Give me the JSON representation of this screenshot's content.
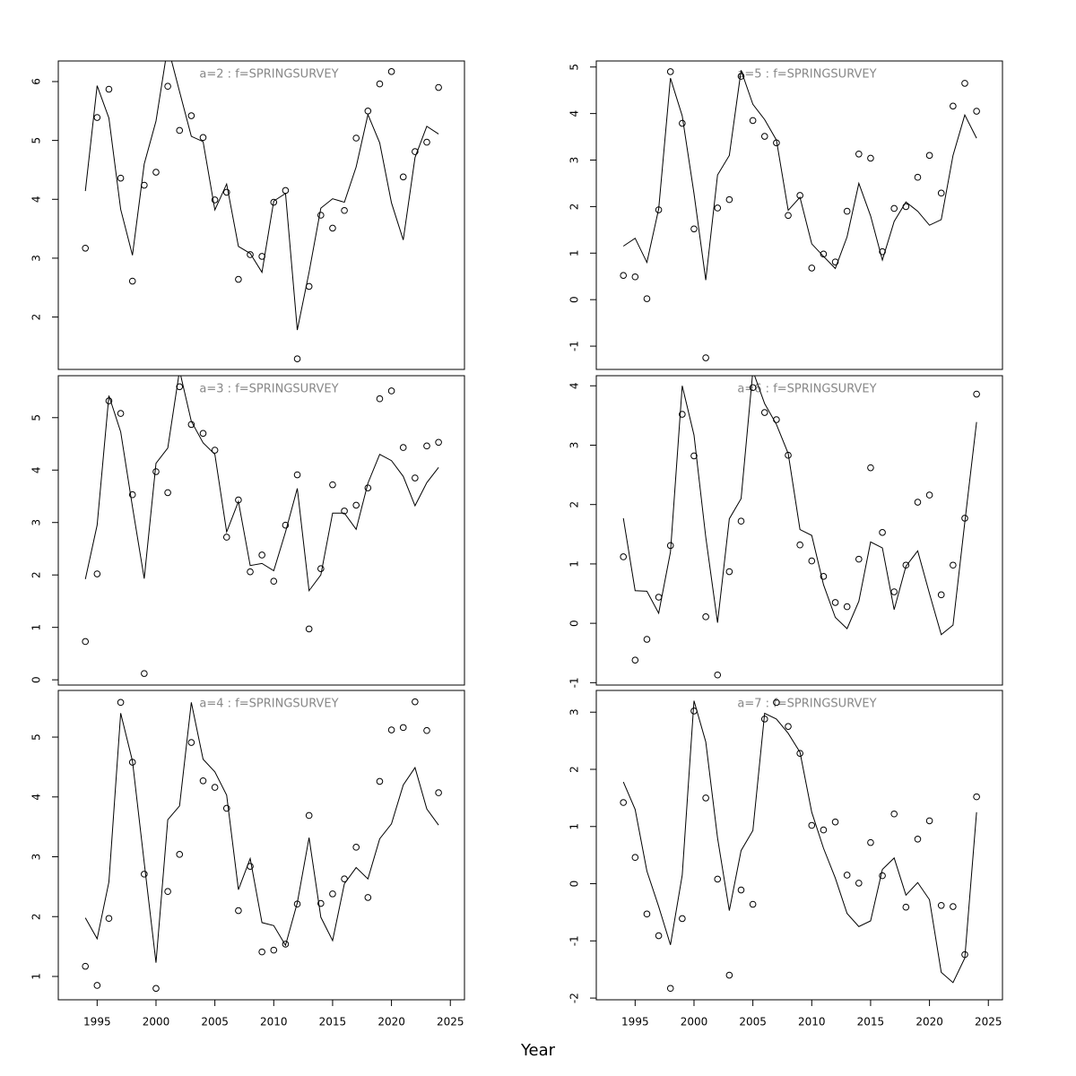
{
  "xlabel": "Year",
  "chart_data": [
    {
      "type": "line",
      "title": "a=2 : f=SPRINGSURVEY",
      "x": [
        1994,
        1995,
        1996,
        1997,
        1998,
        1999,
        2000,
        2001,
        2002,
        2003,
        2004,
        2005,
        2006,
        2007,
        2008,
        2009,
        2010,
        2011,
        2012,
        2013,
        2014,
        2015,
        2016,
        2017,
        2018,
        2019,
        2020,
        2021,
        2022,
        2023,
        2024
      ],
      "xlim": [
        1991.7,
        2026.2
      ],
      "ylim": [
        1.11,
        6.35
      ],
      "yticks": [
        2,
        3,
        4,
        5,
        6
      ],
      "series": [
        {
          "style": "points",
          "color": "#000000",
          "values": [
            3.17,
            5.39,
            5.87,
            4.36,
            2.61,
            4.24,
            4.46,
            5.92,
            5.17,
            5.42,
            5.05,
            3.99,
            4.12,
            2.64,
            3.06,
            3.03,
            3.95,
            4.15,
            1.29,
            2.52,
            3.73,
            3.51,
            3.81,
            5.04,
            5.5,
            5.96,
            6.17,
            4.38,
            4.81,
            4.97,
            5.9
          ]
        },
        {
          "style": "line",
          "color": "#000000",
          "values": [
            4.14,
            5.93,
            5.38,
            3.83,
            3.05,
            4.6,
            5.33,
            6.6,
            5.83,
            5.07,
            4.98,
            3.82,
            4.26,
            3.2,
            3.08,
            2.76,
            3.97,
            4.1,
            1.78,
            2.76,
            3.85,
            4.01,
            3.95,
            4.55,
            5.44,
            4.96,
            3.94,
            3.31,
            4.71,
            5.24,
            5.11
          ]
        }
      ]
    },
    {
      "type": "line",
      "title": "a=5 : f=SPRINGSURVEY",
      "x": [
        1994,
        1995,
        1996,
        1997,
        1998,
        1999,
        2000,
        2001,
        2002,
        2003,
        2004,
        2005,
        2006,
        2007,
        2008,
        2009,
        2010,
        2011,
        2012,
        2013,
        2014,
        2015,
        2016,
        2017,
        2018,
        2019,
        2020,
        2021,
        2022,
        2023,
        2024
      ],
      "xlim": [
        1991.7,
        2026.2
      ],
      "ylim": [
        -1.5,
        5.13
      ],
      "yticks": [
        -1,
        0,
        1,
        2,
        3,
        4,
        5
      ],
      "series": [
        {
          "style": "points",
          "color": "#000000",
          "values": [
            0.52,
            0.49,
            0.02,
            1.93,
            4.9,
            3.79,
            1.52,
            -1.25,
            1.97,
            2.15,
            4.8,
            3.85,
            3.51,
            3.37,
            1.81,
            2.24,
            0.68,
            0.98,
            0.81,
            1.9,
            3.13,
            3.04,
            1.03,
            1.96,
            2.0,
            2.63,
            3.1,
            2.29,
            4.16,
            4.65,
            4.05
          ]
        },
        {
          "style": "line",
          "color": "#000000",
          "values": [
            1.15,
            1.32,
            0.8,
            1.95,
            4.76,
            3.95,
            2.28,
            0.42,
            2.68,
            3.1,
            4.93,
            4.2,
            3.87,
            3.43,
            1.92,
            2.2,
            1.2,
            0.93,
            0.67,
            1.35,
            2.5,
            1.8,
            0.85,
            1.68,
            2.1,
            1.9,
            1.6,
            1.72,
            3.1,
            3.97,
            3.47
          ]
        }
      ]
    },
    {
      "type": "line",
      "title": "a=3 : f=SPRINGSURVEY",
      "x": [
        1994,
        1995,
        1996,
        1997,
        1998,
        1999,
        2000,
        2001,
        2002,
        2003,
        2004,
        2005,
        2006,
        2007,
        2008,
        2009,
        2010,
        2011,
        2012,
        2013,
        2014,
        2015,
        2016,
        2017,
        2018,
        2019,
        2020,
        2021,
        2022,
        2023,
        2024
      ],
      "xlim": [
        1991.7,
        2026.2
      ],
      "ylim": [
        -0.1,
        5.8
      ],
      "yticks": [
        0,
        1,
        2,
        3,
        4,
        5
      ],
      "series": [
        {
          "style": "points",
          "color": "#000000",
          "values": [
            0.73,
            2.02,
            5.32,
            5.08,
            3.53,
            0.12,
            3.97,
            3.57,
            5.59,
            4.87,
            4.7,
            4.38,
            2.72,
            3.43,
            2.06,
            2.38,
            1.88,
            2.95,
            3.91,
            0.97,
            2.12,
            3.72,
            3.22,
            3.33,
            3.66,
            5.36,
            5.51,
            4.43,
            3.85,
            4.46,
            4.53
          ]
        },
        {
          "style": "line",
          "color": "#000000",
          "values": [
            1.92,
            2.95,
            5.42,
            4.73,
            3.3,
            1.93,
            4.13,
            4.42,
            5.9,
            4.93,
            4.52,
            4.3,
            2.82,
            3.4,
            2.18,
            2.22,
            2.08,
            2.82,
            3.65,
            1.7,
            2.0,
            3.18,
            3.18,
            2.87,
            3.75,
            4.3,
            4.18,
            3.88,
            3.32,
            3.76,
            4.05
          ]
        }
      ]
    },
    {
      "type": "line",
      "title": "a=6 : f=SPRINGSURVEY",
      "x": [
        1994,
        1995,
        1996,
        1997,
        1998,
        1999,
        2000,
        2001,
        2002,
        2003,
        2004,
        2005,
        2006,
        2007,
        2008,
        2009,
        2010,
        2011,
        2012,
        2013,
        2014,
        2015,
        2016,
        2017,
        2018,
        2019,
        2020,
        2021,
        2022,
        2023,
        2024
      ],
      "xlim": [
        1991.7,
        2026.2
      ],
      "ylim": [
        -1.04,
        4.17
      ],
      "yticks": [
        -1,
        0,
        1,
        2,
        3,
        4
      ],
      "series": [
        {
          "style": "points",
          "color": "#000000",
          "values": [
            1.12,
            -0.62,
            -0.27,
            0.44,
            1.31,
            3.52,
            2.82,
            0.11,
            -0.87,
            0.87,
            1.72,
            3.97,
            3.55,
            3.43,
            2.83,
            1.32,
            1.05,
            0.79,
            0.35,
            0.28,
            1.08,
            2.62,
            1.53,
            0.53,
            0.98,
            2.04,
            2.16,
            0.48,
            0.98,
            1.77,
            3.86
          ]
        },
        {
          "style": "line",
          "color": "#000000",
          "values": [
            1.77,
            0.55,
            0.54,
            0.17,
            1.2,
            4.0,
            3.17,
            1.45,
            0.01,
            1.76,
            2.1,
            4.25,
            3.7,
            3.35,
            2.86,
            1.58,
            1.48,
            0.65,
            0.1,
            -0.09,
            0.37,
            1.37,
            1.27,
            0.23,
            0.96,
            1.22,
            0.5,
            -0.19,
            -0.03,
            1.7,
            3.39
          ]
        }
      ]
    },
    {
      "type": "line",
      "title": "a=4 : f=SPRINGSURVEY",
      "x": [
        1994,
        1995,
        1996,
        1997,
        1998,
        1999,
        2000,
        2001,
        2002,
        2003,
        2004,
        2005,
        2006,
        2007,
        2008,
        2009,
        2010,
        2011,
        2012,
        2013,
        2014,
        2015,
        2016,
        2017,
        2018,
        2019,
        2020,
        2021,
        2022,
        2023,
        2024
      ],
      "xlim": [
        1991.7,
        2026.2
      ],
      "xticks": [
        1995,
        2000,
        2005,
        2010,
        2015,
        2020,
        2025
      ],
      "ylim": [
        0.61,
        5.78
      ],
      "yticks": [
        1,
        2,
        3,
        4,
        5
      ],
      "series": [
        {
          "style": "points",
          "color": "#000000",
          "values": [
            1.17,
            0.85,
            1.97,
            5.58,
            4.58,
            2.71,
            0.8,
            2.42,
            3.04,
            4.91,
            4.27,
            4.16,
            3.81,
            2.1,
            2.84,
            1.41,
            1.44,
            1.54,
            2.21,
            3.69,
            2.22,
            2.38,
            2.63,
            3.16,
            2.32,
            4.26,
            5.12,
            5.16,
            5.59,
            5.11,
            4.07
          ]
        },
        {
          "style": "line",
          "color": "#000000",
          "values": [
            1.98,
            1.63,
            2.58,
            5.4,
            4.6,
            2.9,
            1.23,
            3.62,
            3.85,
            5.58,
            4.63,
            4.42,
            4.03,
            2.45,
            2.97,
            1.9,
            1.85,
            1.52,
            2.23,
            3.32,
            1.99,
            1.6,
            2.55,
            2.82,
            2.63,
            3.3,
            3.55,
            4.2,
            4.49,
            3.8,
            3.53
          ]
        }
      ]
    },
    {
      "type": "line",
      "title": "a=7 : f=SPRINGSURVEY",
      "x": [
        1994,
        1995,
        1996,
        1997,
        1998,
        1999,
        2000,
        2001,
        2002,
        2003,
        2004,
        2005,
        2006,
        2007,
        2008,
        2009,
        2010,
        2011,
        2012,
        2013,
        2014,
        2015,
        2016,
        2017,
        2018,
        2019,
        2020,
        2021,
        2022,
        2023,
        2024
      ],
      "xlim": [
        1991.7,
        2026.2
      ],
      "xticks": [
        1995,
        2000,
        2005,
        2010,
        2015,
        2020,
        2025
      ],
      "ylim": [
        -2.03,
        3.38
      ],
      "yticks": [
        -2,
        -1,
        0,
        1,
        2,
        3
      ],
      "series": [
        {
          "style": "points",
          "color": "#000000",
          "values": [
            1.42,
            0.46,
            -0.53,
            -0.91,
            -1.83,
            -0.61,
            3.02,
            1.5,
            0.08,
            -1.6,
            -0.11,
            -0.36,
            2.88,
            3.17,
            2.75,
            2.28,
            1.02,
            0.94,
            1.08,
            0.15,
            0.01,
            0.72,
            0.14,
            1.22,
            -0.41,
            0.78,
            1.1,
            -0.38,
            -0.4,
            -1.24,
            1.52
          ]
        },
        {
          "style": "line",
          "color": "#000000",
          "values": [
            1.78,
            1.3,
            0.22,
            -0.4,
            -1.07,
            0.15,
            3.2,
            2.48,
            0.8,
            -0.47,
            0.58,
            0.93,
            2.98,
            2.88,
            2.63,
            2.3,
            1.25,
            0.62,
            0.1,
            -0.52,
            -0.75,
            -0.65,
            0.25,
            0.45,
            -0.2,
            0.02,
            -0.28,
            -1.55,
            -1.73,
            -1.3,
            1.25
          ]
        }
      ]
    }
  ]
}
